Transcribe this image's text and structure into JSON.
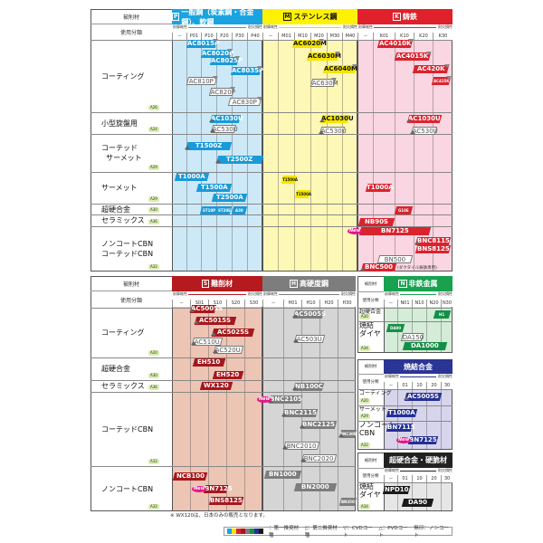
{
  "top": {
    "left": {
      "header": "被削材",
      "class_label": "使用分類",
      "rows": [
        {
          "label": "コーティング",
          "badge": "A26"
        },
        {
          "label": "小型旋盤用",
          "badge": "A24"
        },
        {
          "label": "コーテッド\n  サーメット",
          "badge": "A29"
        },
        {
          "label": "サーメット",
          "badge": "A29"
        },
        {
          "label": "超硬合金",
          "badge": "A30"
        },
        {
          "label": "セラミックス",
          "badge": "A36"
        },
        {
          "label": "ノンコートCBN\nコーテッドCBN",
          "badge": "A32"
        }
      ]
    },
    "panels": [
      {
        "key": "P",
        "title": "一般鋼（炭素鋼・合金鋼）、軟鋼",
        "scale_left": "耐摩耗性",
        "scale_right": "耐欠損性",
        "ticks": [
          "－",
          "P01",
          "P10",
          "P20",
          "P30",
          "P40"
        ],
        "colors": {
          "header": "#1aa3e0",
          "bg": "#cde9f7",
          "fill": "#1a9ad8",
          "text": "#ffffff"
        },
        "grades": [
          {
            "name": "AC8015P",
            "rec": "first",
            "coat": "cvd"
          },
          {
            "name": "AC8020P",
            "rec": "first",
            "coat": "cvd"
          },
          {
            "name": "AC8025P",
            "rec": "first",
            "coat": "cvd"
          },
          {
            "name": "AC8035P",
            "rec": "first",
            "coat": "cvd"
          },
          {
            "name": "AC810P",
            "rec": "second",
            "coat": "cvd"
          },
          {
            "name": "AC820P",
            "rec": "second",
            "coat": "cvd"
          },
          {
            "name": "AC830P",
            "rec": "second",
            "coat": "cvd"
          },
          {
            "name": "AC1030U",
            "rec": "first",
            "coat": "pvd"
          },
          {
            "name": "AC530U",
            "rec": "second",
            "coat": "pvd"
          },
          {
            "name": "T1500Z",
            "rec": "first",
            "coat": "pvd"
          },
          {
            "name": "T2500Z",
            "rec": "first",
            "coat": "pvd"
          },
          {
            "name": "T1000A",
            "rec": "first",
            "coat": "none"
          },
          {
            "name": "T1500A",
            "rec": "first",
            "coat": "none"
          },
          {
            "name": "T2500A",
            "rec": "first",
            "coat": "none"
          },
          {
            "name": "ST10P",
            "rec": "first",
            "coat": "none"
          },
          {
            "name": "ST20E",
            "rec": "first",
            "coat": "none"
          },
          {
            "name": "A30",
            "rec": "first",
            "coat": "none"
          }
        ]
      },
      {
        "key": "M",
        "title": "ステンレス鋼",
        "scale_left": "耐摩耗性",
        "scale_right": "耐欠損性",
        "ticks": [
          "－",
          "M01",
          "M10",
          "M20",
          "M30",
          "M40"
        ],
        "colors": {
          "header": "#fff200",
          "bg": "#fdf8b5",
          "fill": "#f5e400",
          "text": "#111111"
        },
        "grades": [
          {
            "name": "AC6020M",
            "rec": "first",
            "coat": "cvd"
          },
          {
            "name": "AC6030M",
            "rec": "first",
            "coat": "cvd"
          },
          {
            "name": "AC6040M",
            "rec": "first",
            "coat": "cvd"
          },
          {
            "name": "AC630M",
            "rec": "second",
            "coat": "cvd"
          },
          {
            "name": "AC1030U",
            "rec": "first",
            "coat": "pvd"
          },
          {
            "name": "AC530U",
            "rec": "second",
            "coat": "pvd"
          },
          {
            "name": "T1500A",
            "rec": "first",
            "coat": "none"
          },
          {
            "name": "T1500A",
            "rec": "first",
            "coat": "none"
          }
        ]
      },
      {
        "key": "K",
        "title": "鋳鉄",
        "scale_left": "耐摩耗性",
        "scale_right": "耐欠損性",
        "ticks": [
          "－",
          "K01",
          "K10",
          "K20",
          "K30"
        ],
        "colors": {
          "header": "#e0202a",
          "bg": "#f9d6e2",
          "fill": "#d9232e",
          "text": "#ffffff"
        },
        "grades": [
          {
            "name": "AC4010K",
            "rec": "first",
            "coat": "cvd"
          },
          {
            "name": "AC4015K",
            "rec": "first",
            "coat": "cvd"
          },
          {
            "name": "AC420K",
            "rec": "first",
            "coat": "cvd"
          },
          {
            "name": "AC425K",
            "rec": "first",
            "coat": "cvd"
          },
          {
            "name": "AC1030U",
            "rec": "first",
            "coat": "pvd"
          },
          {
            "name": "AC530U",
            "rec": "second",
            "coat": "pvd"
          },
          {
            "name": "T1000A",
            "rec": "first",
            "coat": "none"
          },
          {
            "name": "G10E",
            "rec": "first",
            "coat": "none"
          },
          {
            "name": "NB90S",
            "rec": "first",
            "coat": "none"
          },
          {
            "name": "BN7125",
            "rec": "first",
            "coat": "none",
            "new": "New"
          },
          {
            "name": "BNC8115",
            "rec": "first",
            "coat": "pvd"
          },
          {
            "name": "BNS8125",
            "rec": "first",
            "coat": "none"
          },
          {
            "name": "BN500",
            "rec": "second",
            "coat": "none"
          },
          {
            "name": "BNC500",
            "rec": "first",
            "coat": "pvd",
            "note": "(ダクタイル鋳鉄専用)"
          }
        ]
      }
    ]
  },
  "bottom": {
    "left": {
      "header": "被削材",
      "class_label": "使用分類",
      "rows": [
        {
          "label": "コーティング",
          "badge": "A20"
        },
        {
          "label": "超硬合金",
          "badge": "A30"
        },
        {
          "label": "セラミックス",
          "badge": "A36"
        },
        {
          "label": "コーテッドCBN",
          "badge": "A32"
        },
        {
          "label": "ノンコートCBN",
          "badge": "A32"
        }
      ]
    },
    "panels": [
      {
        "key": "S",
        "title": "難削材",
        "scale_left": "耐摩耗性",
        "scale_right": "耐欠損性",
        "ticks": [
          "－",
          "S01",
          "S10",
          "S20",
          "S30"
        ],
        "colors": {
          "header": "#b51a1f",
          "bg": "#ecc5b5",
          "fill": "#a6171c",
          "text": "#ffffff"
        },
        "grades": [
          {
            "name": "AC5005S",
            "rec": "first",
            "coat": "pvd"
          },
          {
            "name": "AC5015S",
            "rec": "first",
            "coat": "pvd"
          },
          {
            "name": "AC5025S",
            "rec": "first",
            "coat": "pvd"
          },
          {
            "name": "AC510U",
            "rec": "second",
            "coat": "pvd"
          },
          {
            "name": "AC520U",
            "rec": "second",
            "coat": "pvd"
          },
          {
            "name": "EH510",
            "rec": "first",
            "coat": "none"
          },
          {
            "name": "EH520",
            "rec": "first",
            "coat": "none"
          },
          {
            "name": "WX120",
            "rec": "first",
            "coat": "none"
          },
          {
            "name": "NCB100",
            "rec": "first",
            "coat": "none"
          },
          {
            "name": "BN7125",
            "rec": "first",
            "coat": "none",
            "new": "New"
          },
          {
            "name": "BNS8125",
            "rec": "first",
            "coat": "none"
          }
        ]
      },
      {
        "key": "H",
        "title": "高硬度鋼",
        "scale_left": "耐摩耗性",
        "scale_right": "耐欠損性",
        "ticks": [
          "－",
          "H01",
          "H10",
          "H20",
          "H30"
        ],
        "colors": {
          "header": "#7d7d7d",
          "bg": "#d5d5d5",
          "fill": "#7d7d7d",
          "text": "#ffffff"
        },
        "grades": [
          {
            "name": "AC5005S",
            "rec": "first",
            "coat": "pvd"
          },
          {
            "name": "AC503U",
            "rec": "second",
            "coat": "pvd"
          },
          {
            "name": "NB100C",
            "rec": "first",
            "coat": "pvd"
          },
          {
            "name": "BNC2105",
            "rec": "first",
            "coat": "pvd",
            "new": "New"
          },
          {
            "name": "BNC2115",
            "rec": "first",
            "coat": "pvd"
          },
          {
            "name": "BNC2125",
            "rec": "first",
            "coat": "pvd"
          },
          {
            "name": "BNC300",
            "rec": "first",
            "coat": "pvd"
          },
          {
            "name": "BNC2010",
            "rec": "second",
            "coat": "pvd"
          },
          {
            "name": "BNC2020",
            "rec": "second",
            "coat": "pvd"
          },
          {
            "name": "BN1000",
            "rec": "first",
            "coat": "none"
          },
          {
            "name": "BN2000",
            "rec": "first",
            "coat": "none"
          },
          {
            "name": "BN350",
            "rec": "first",
            "coat": "none"
          }
        ]
      }
    ],
    "side_panels": [
      {
        "key": "N",
        "title": "非鉄金属",
        "header_label": "被削材",
        "class_label": "使用分類",
        "scale_left": "耐摩耗性",
        "scale_right": "耐欠損性",
        "ticks": [
          "－",
          "N01",
          "N10",
          "N20",
          "N30"
        ],
        "colors": {
          "header": "#19a150",
          "bg": "#d4ecd8",
          "fill": "#139046",
          "text": "#ffffff"
        },
        "rows": [
          {
            "label": "超硬合金",
            "badge": "A30"
          },
          {
            "label": "焼結\nダイヤ",
            "badge": "A34"
          }
        ],
        "grades": [
          {
            "name": "H1",
            "rec": "first",
            "coat": "none"
          },
          {
            "name": "DA90",
            "rec": "first",
            "coat": "none"
          },
          {
            "name": "DA150",
            "rec": "second",
            "coat": "none"
          },
          {
            "name": "DA1000",
            "rec": "first",
            "coat": "none"
          }
        ]
      },
      {
        "key": "",
        "title": "焼結合金",
        "header_label": "被削材",
        "class_label": "使用分類",
        "scale_left": "耐摩耗性",
        "scale_right": "耐欠損性",
        "ticks": [
          "－",
          "01",
          "10",
          "20",
          "30"
        ],
        "colors": {
          "header": "#2b3595",
          "bg": "#d7d5ec",
          "fill": "#243092",
          "text": "#ffffff"
        },
        "rows": [
          {
            "label": "コーティング",
            "badge": "A20"
          },
          {
            "label": "サーメット",
            "badge": "A29"
          },
          {
            "label": "ノンコート\nCBN",
            "badge": "A32"
          }
        ],
        "grades": [
          {
            "name": "AC5005S",
            "rec": "first",
            "coat": "pvd"
          },
          {
            "name": "T1000A",
            "rec": "first",
            "coat": "none"
          },
          {
            "name": "BN7115",
            "rec": "first",
            "coat": "none"
          },
          {
            "name": "BN7125",
            "rec": "first",
            "coat": "none",
            "new": "New"
          }
        ]
      },
      {
        "key": "",
        "title": "超硬合金・硬脆材",
        "header_label": "被削材",
        "class_label": "使用分類",
        "scale_left": "耐摩耗性",
        "scale_right": "耐欠損性",
        "ticks": [
          "－",
          "01",
          "10",
          "20",
          "30"
        ],
        "colors": {
          "header": "#222222",
          "bg": "#e6e6e6",
          "fill": "#1a1a1a",
          "text": "#ffffff"
        },
        "rows": [
          {
            "label": "焼結\nダイヤ",
            "badge": "A34"
          }
        ],
        "grades": [
          {
            "name": "NPD10",
            "rec": "first",
            "coat": "none"
          },
          {
            "name": "DA90",
            "rec": "first",
            "coat": "none"
          }
        ]
      }
    ]
  },
  "footnote": "※ WX120は、日本のみの販売となります。",
  "legend": {
    "first": "：第一推奨材種",
    "second": "：第二推奨材種",
    "cvd": "：CVDコート",
    "pvd": "：PVDコート",
    "none": "無印：ノンコート",
    "bar_colors": [
      "#1aa3e0",
      "#f5e400",
      "#d9232e",
      "#a6171c",
      "#7d7d7d",
      "#139046",
      "#243092",
      "#1a1a1a"
    ]
  }
}
